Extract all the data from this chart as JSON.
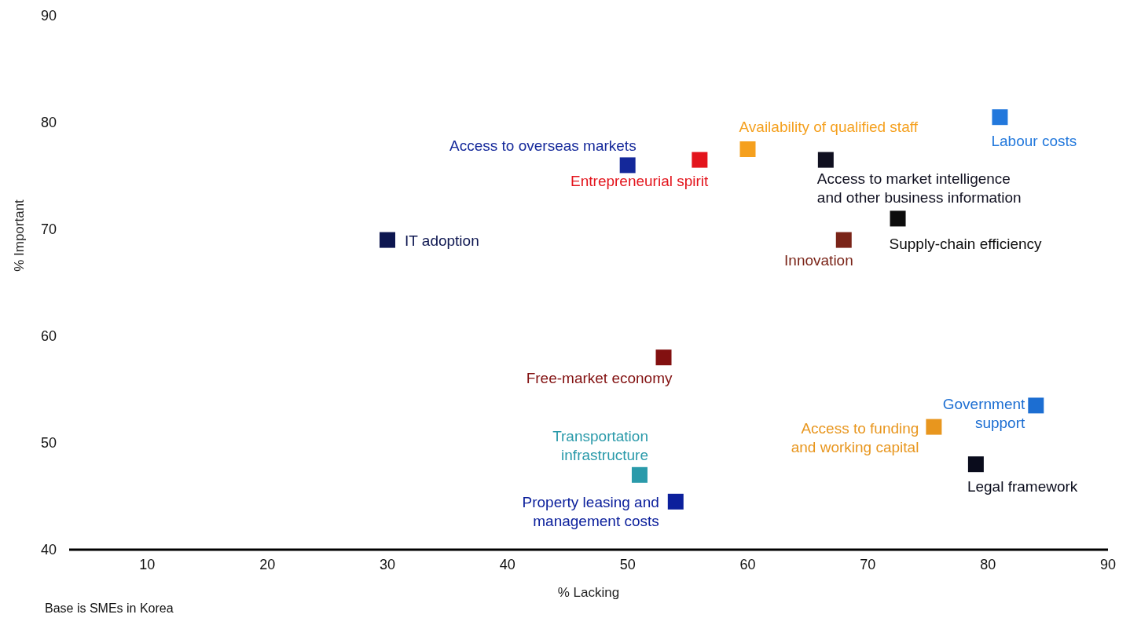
{
  "chart_data": {
    "type": "scatter",
    "xlabel": "% Lacking",
    "ylabel": "% Important",
    "xlim": [
      3.5,
      90
    ],
    "xticks": [
      10,
      20,
      30,
      40,
      50,
      60,
      70,
      80,
      90
    ],
    "ylim": [
      40,
      90
    ],
    "yticks": [
      40,
      50,
      60,
      70,
      80,
      90
    ],
    "marker": "square",
    "annotations": [
      "Base is SMEs in Korea"
    ],
    "series": [
      {
        "name": "IT adoption",
        "color": "#0d1650",
        "x": [
          30
        ],
        "values": [
          69
        ]
      },
      {
        "name": "Access to overseas markets",
        "color": "#14289a",
        "x": [
          50
        ],
        "values": [
          76
        ]
      },
      {
        "name": "Entrepreneurial spirit",
        "color": "#e3141c",
        "x": [
          56
        ],
        "values": [
          76.5
        ]
      },
      {
        "name": "Availability of qualified staff",
        "color": "#f5a01e",
        "x": [
          60
        ],
        "values": [
          77.5
        ]
      },
      {
        "name": "Access to market intelligence and other business information",
        "color": "#101020",
        "x": [
          66.5
        ],
        "values": [
          76.5
        ]
      },
      {
        "name": "Labour costs",
        "color": "#2278dc",
        "x": [
          81
        ],
        "values": [
          80.5
        ]
      },
      {
        "name": "Supply-chain efficiency",
        "color": "#0c0c0c",
        "x": [
          72.5
        ],
        "values": [
          71
        ]
      },
      {
        "name": "Innovation",
        "color": "#7a2418",
        "x": [
          68
        ],
        "values": [
          69
        ]
      },
      {
        "name": "Free-market economy",
        "color": "#821010",
        "x": [
          53
        ],
        "values": [
          58
        ]
      },
      {
        "name": "Government support",
        "color": "#1c6ed2",
        "x": [
          84
        ],
        "values": [
          53.5
        ]
      },
      {
        "name": "Access to funding and working capital",
        "color": "#e8961e",
        "x": [
          75.5
        ],
        "values": [
          51.5
        ]
      },
      {
        "name": "Legal framework",
        "color": "#0a0c1c",
        "x": [
          79
        ],
        "values": [
          48
        ]
      },
      {
        "name": "Transportation infrastructure",
        "color": "#2a9aaa",
        "x": [
          51
        ],
        "values": [
          47
        ]
      },
      {
        "name": "Property leasing and management costs",
        "color": "#0c209c",
        "x": [
          54
        ],
        "values": [
          44.5
        ]
      }
    ]
  }
}
